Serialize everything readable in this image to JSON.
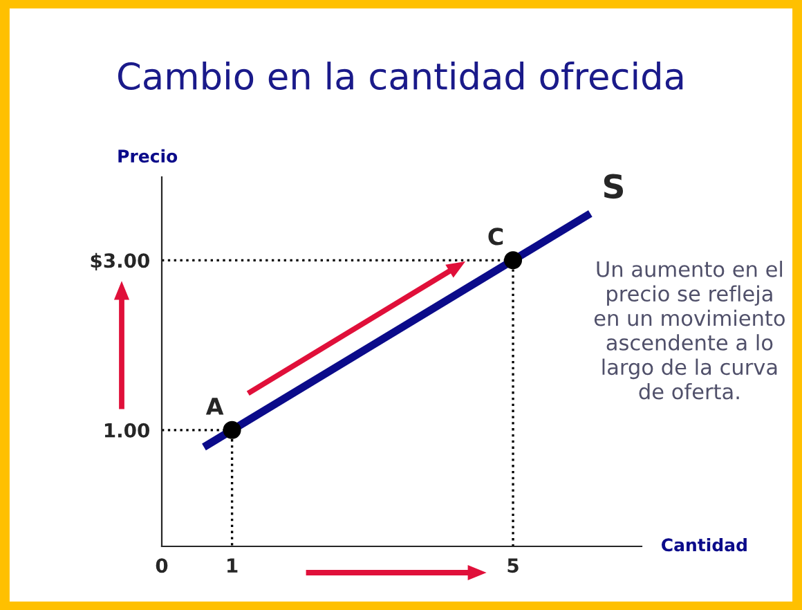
{
  "chart_data": {
    "type": "line",
    "title": "Cambio en la cantidad ofrecida",
    "xlabel": "Cantidad",
    "ylabel": "Precio",
    "xlim": [
      0,
      6.83
    ],
    "ylim": [
      -0.37,
      3.98
    ],
    "xticks": [
      0,
      1,
      5
    ],
    "yticks": [
      {
        "value": 1,
        "label": "1.00"
      },
      {
        "value": 3,
        "label": "$3.00"
      }
    ],
    "series": [
      {
        "name": "S",
        "color": "#0b0b8a",
        "x": [
          0.6,
          6.1
        ],
        "values": [
          0.8,
          3.55
        ]
      },
      {
        "type": "scatter",
        "color": "#000000",
        "x": [
          1,
          5
        ],
        "values": [
          1,
          3
        ]
      },
      {
        "color": "#000000",
        "line_style": "dotted",
        "x": [
          0,
          1,
          1
        ],
        "values": [
          1,
          1,
          -0.37
        ]
      },
      {
        "color": "#000000",
        "line_style": "dotted",
        "x": [
          0,
          5,
          5
        ],
        "values": [
          3,
          3,
          -0.37
        ]
      }
    ],
    "annotations": [
      {
        "text": "A",
        "x": 1,
        "y": 1
      },
      {
        "text": "C",
        "x": 5,
        "y": 3
      },
      "Un aumento en el\nprecio se refleja\nen un movimiento\nascendente a lo\nlargo de la curva\nde oferta."
    ],
    "grid": false,
    "legend": false
  }
}
